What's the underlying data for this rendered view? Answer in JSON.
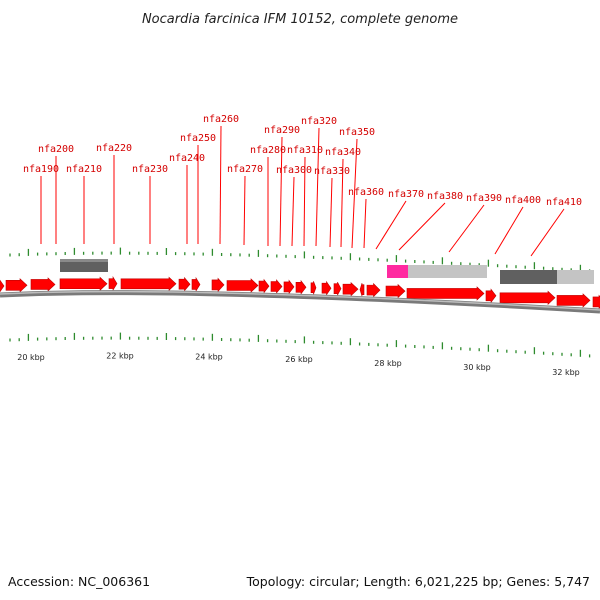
{
  "title": "Nocardia farcinica IFM 10152, complete genome",
  "footer": {
    "accession": "Accession: NC_006361",
    "summary": "Topology: circular; Length: 6,021,225 bp; Genes: 5,747"
  },
  "gene_labels": [
    "nfa190",
    "nfa200",
    "nfa210",
    "nfa220",
    "nfa230",
    "nfa240",
    "nfa250",
    "nfa260",
    "nfa270",
    "nfa280",
    "nfa290",
    "nfa300",
    "nfa310",
    "nfa320",
    "nfa330",
    "nfa340",
    "nfa350",
    "nfa360",
    "nfa370",
    "nfa380",
    "nfa390",
    "nfa400",
    "nfa410"
  ],
  "scale_labels": [
    "20 kbp",
    "22 kbp",
    "24 kbp",
    "26 kbp",
    "28 kbp",
    "30 kbp",
    "32 kbp"
  ],
  "colors": {
    "gene": "#ff0000",
    "gene_dark": "#c00000",
    "track": "#7a7a7a",
    "tick": "#2e8b2e",
    "feature_dark": "#606060",
    "feature_light": "#c4c4c4",
    "feature_pink": "#ff2aa0"
  }
}
